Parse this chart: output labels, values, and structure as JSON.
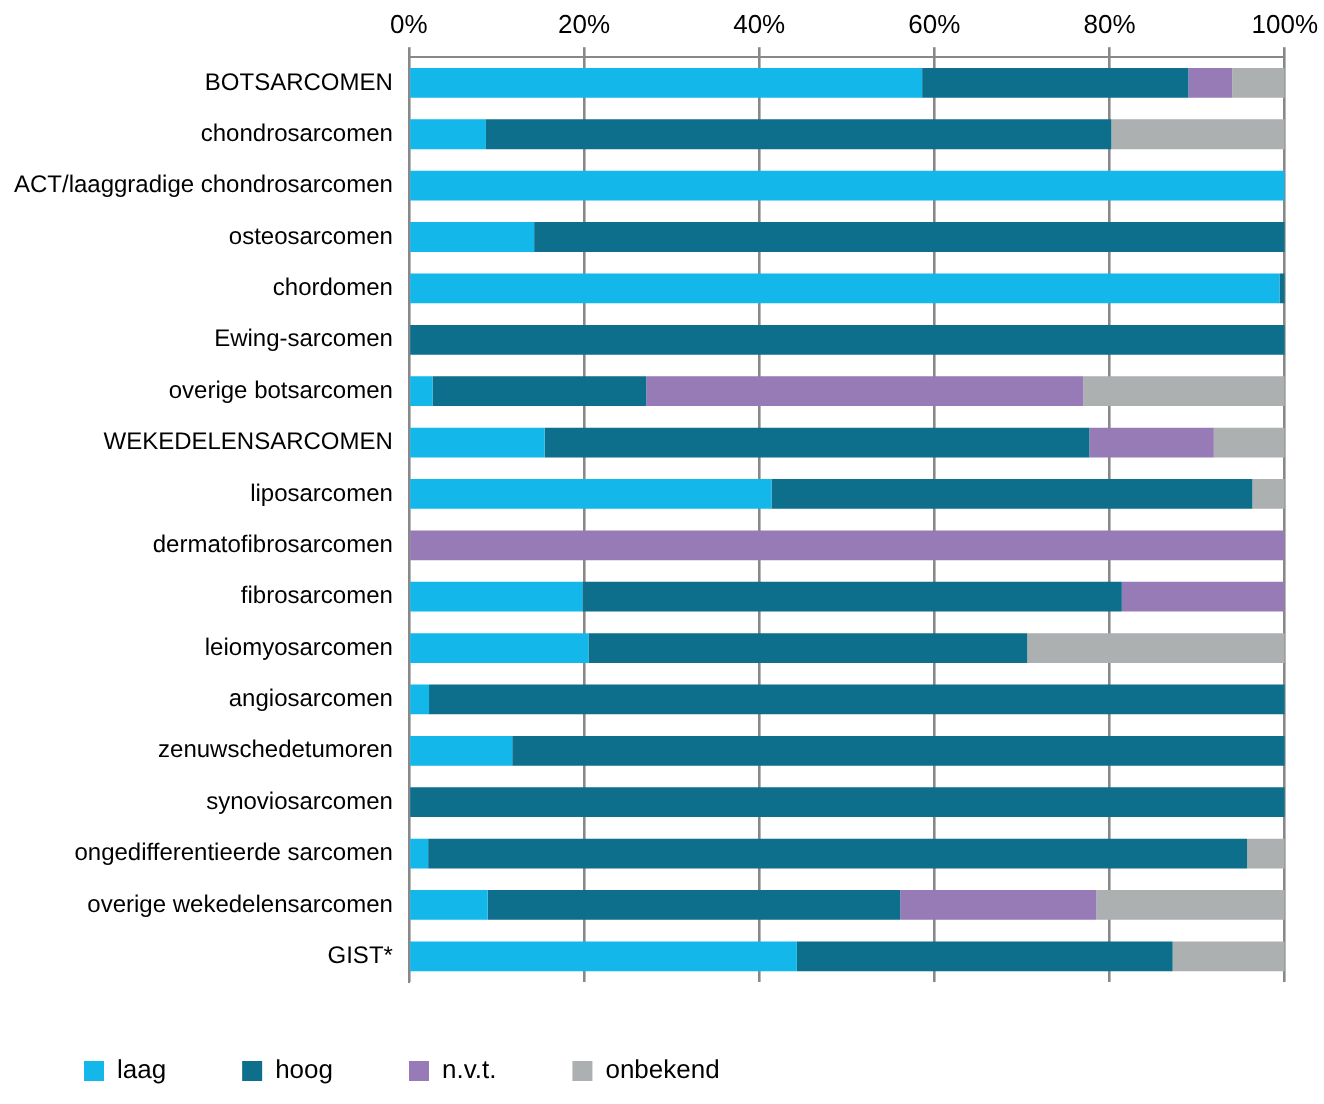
{
  "chart_data": {
    "type": "bar",
    "orientation": "horizontal",
    "stacked": true,
    "categories": [
      "BOTSARCOMEN",
      "chondrosarcomen",
      "ACT/laaggradige chondrosarcomen",
      "osteosarcomen",
      "chordomen",
      "Ewing-sarcomen",
      "overige botsarcomen",
      "WEKEDELENSARCOMEN",
      "liposarcomen",
      "dermatofibrosarcomen",
      "fibrosarcomen",
      "leiomyosarcomen",
      "angiosarcomen",
      "zenuwschedetumoren",
      "synoviosarcomen",
      "ongedifferentieerde sarcomen",
      "overige wekedelensarcomen",
      "GIST*"
    ],
    "series": [
      {
        "name": "laag",
        "color": "#13b7ea",
        "values": [
          58.6,
          8.8,
          100,
          14.3,
          99.4,
          0,
          2.7,
          15.5,
          41.4,
          0,
          19.8,
          20.5,
          2.3,
          11.8,
          0,
          2.2,
          9.0,
          44.3
        ]
      },
      {
        "name": "hoog",
        "color": "#0e6f8d",
        "values": [
          30.4,
          71.4,
          0,
          85.7,
          0.6,
          100,
          24.4,
          62.2,
          54.9,
          0,
          61.6,
          50.1,
          97.7,
          88.2,
          100,
          93.5,
          47.1,
          42.9
        ]
      },
      {
        "name": "n.v.t.",
        "color": "#967bb6",
        "values": [
          5.0,
          0,
          0,
          0,
          0,
          0,
          49.9,
          14.2,
          0,
          100,
          18.6,
          0,
          0,
          0,
          0,
          0,
          22.4,
          0
        ]
      },
      {
        "name": "onbekend",
        "color": "#adb0b0",
        "values": [
          6.0,
          19.8,
          0,
          0,
          0,
          0,
          23.0,
          8.1,
          3.7,
          0,
          0,
          29.4,
          0,
          0,
          0,
          4.3,
          21.5,
          12.8
        ]
      }
    ],
    "xlim": [
      0,
      100
    ],
    "xticks": [
      {
        "value": 0,
        "label": "0%"
      },
      {
        "value": 20,
        "label": "20%"
      },
      {
        "value": 40,
        "label": "40%"
      },
      {
        "value": 60,
        "label": "60%"
      },
      {
        "value": 80,
        "label": "80%"
      },
      {
        "value": 100,
        "label": "100%"
      }
    ],
    "grid": "x",
    "legend": "bottom"
  }
}
